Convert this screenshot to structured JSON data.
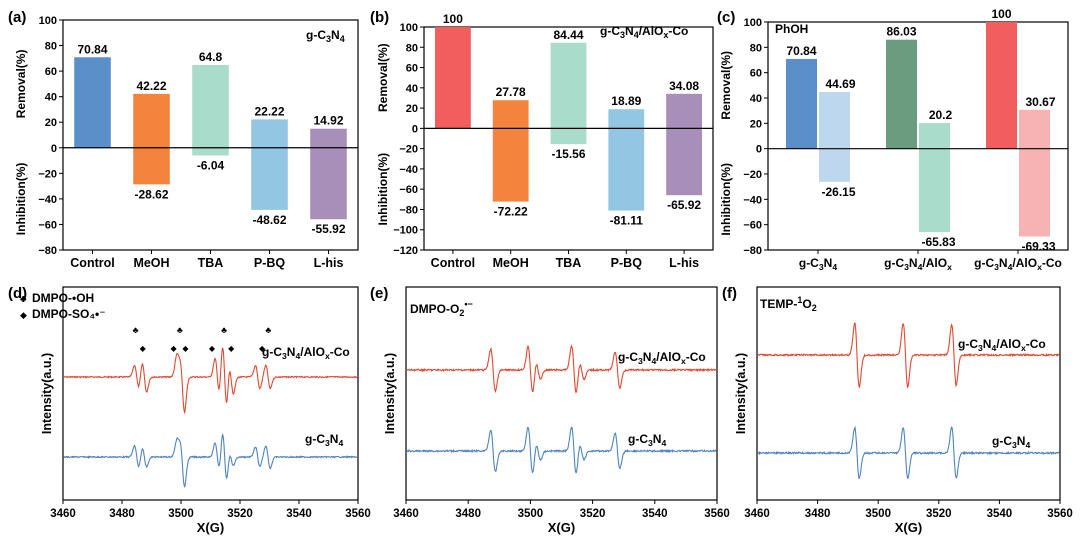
{
  "chart_data": [
    {
      "panel": "(a)",
      "type": "bar",
      "inset_text": {
        "base": "g-C",
        "sub1": "3",
        "mid": "N",
        "sub2": "4"
      },
      "categories": [
        "Control",
        "MeOH",
        "TBA",
        "P-BQ",
        "L-his"
      ],
      "removal": [
        70.84,
        42.22,
        64.8,
        22.22,
        14.92
      ],
      "inhibition": [
        null,
        -28.62,
        -6.04,
        -48.62,
        -55.92
      ],
      "removal_labels": [
        "70.84",
        "42.22",
        "64.8",
        "22.22",
        "14.92"
      ],
      "inhibition_labels": [
        "",
        "-28.62",
        "-6.04",
        "-48.62",
        "-55.92"
      ],
      "colors": [
        "#5b8fc9",
        "#f4843d",
        "#a9dccb",
        "#93c6e3",
        "#a88fba"
      ],
      "ylabel_top": "Removal(%)",
      "ylabel_bottom": "Inhibition(%)",
      "ylim": [
        -80,
        100
      ],
      "yticks": [
        "100",
        "80",
        "60",
        "40",
        "20",
        "0",
        "−20",
        "−40",
        "−60",
        "−80"
      ]
    },
    {
      "panel": "(b)",
      "type": "bar",
      "inset_text": {
        "base": "g-C",
        "sub1": "3",
        "mid": "N",
        "sub2": "4",
        "tail": "/AlO",
        "sub3": "x",
        "end": "-Co"
      },
      "categories": [
        "Control",
        "MeOH",
        "TBA",
        "P-BQ",
        "L-his"
      ],
      "removal": [
        100,
        27.78,
        84.44,
        18.89,
        34.08
      ],
      "inhibition": [
        null,
        -72.22,
        -15.56,
        -81.11,
        -65.92
      ],
      "removal_labels": [
        "100",
        "27.78",
        "84.44",
        "18.89",
        "34.08"
      ],
      "inhibition_labels": [
        "",
        "-72.22",
        "-15.56",
        "-81.11",
        "-65.92"
      ],
      "colors": [
        "#f25e5e",
        "#f4843d",
        "#a9dccb",
        "#93c6e3",
        "#a88fba"
      ],
      "ylabel_top": "Removal(%)",
      "ylabel_bottom": "Inhibition(%)",
      "ylim": [
        -120,
        100
      ],
      "yticks": [
        "100",
        "80",
        "60",
        "40",
        "20",
        "0",
        "−20",
        "−40",
        "−60",
        "−80",
        "−100",
        "−120"
      ]
    },
    {
      "panel": "(c)",
      "type": "bar",
      "inset_text": "PhOH",
      "groups": [
        "g-C3N4",
        "g-C3N4/AlOx",
        "g-C3N4/AlOx-Co"
      ],
      "removal_dark": [
        70.84,
        86.03,
        100
      ],
      "removal_light": [
        44.69,
        20.2,
        30.67
      ],
      "inhibition_light": [
        -26.15,
        -65.83,
        -69.33
      ],
      "removal_dark_labels": [
        "70.84",
        "86.03",
        "100"
      ],
      "removal_light_labels": [
        "44.69",
        "20.2",
        "30.67"
      ],
      "inhibition_labels": [
        "-26.15",
        "-65.83",
        "-69.33"
      ],
      "dark_colors": [
        "#5b8fc9",
        "#6a9d80",
        "#f25e5e"
      ],
      "light_colors": [
        "#bcd7ee",
        "#a9dccb",
        "#f7b3b3"
      ],
      "ylabel_top": "Removal(%)",
      "ylabel_bottom": "Inhibition(%)",
      "ylim": [
        -80,
        100
      ],
      "yticks": [
        "100",
        "80",
        "60",
        "40",
        "20",
        "0",
        "−20",
        "−40",
        "−60",
        "−80"
      ]
    },
    {
      "panel": "(d)",
      "type": "line",
      "xlabel": "X(G)",
      "ylabel": "Intensity(a.u.)",
      "xlim": [
        3460,
        3560
      ],
      "xticks": [
        "3460",
        "3480",
        "3500",
        "3520",
        "3540",
        "3560"
      ],
      "legend_items": [
        "DMPO-•OH",
        "DMPO-SO₄•⁻"
      ],
      "legend_symbols": [
        "♣",
        "◆"
      ],
      "club_positions": [
        3484.6,
        3499.6,
        3514.6,
        3529.6
      ],
      "diamond_positions": [
        3487,
        3497.5,
        3501.5,
        3510.5,
        3517,
        3527.5
      ],
      "series": [
        {
          "label": "g-C3N4/AlOx-Co",
          "color": "#e0492f",
          "peaks": [
            [
              3485,
              0.35
            ],
            [
              3487.6,
              0.45
            ],
            [
              3499.2,
              0.55
            ],
            [
              3500.5,
              1.0
            ],
            [
              3512.3,
              0.55
            ],
            [
              3514.8,
              1.0
            ],
            [
              3517,
              0.5
            ],
            [
              3526,
              0.35
            ],
            [
              3529.5,
              0.35
            ]
          ]
        },
        {
          "label": "g-C3N4",
          "color": "#4f83c2",
          "peaks": [
            [
              3485,
              0.4
            ],
            [
              3487.6,
              0.35
            ],
            [
              3499.2,
              0.5
            ],
            [
              3500.5,
              1.0
            ],
            [
              3512.3,
              0.5
            ],
            [
              3514.8,
              0.9
            ],
            [
              3517,
              0.3
            ],
            [
              3526,
              0.35
            ],
            [
              3529.5,
              0.4
            ]
          ]
        }
      ]
    },
    {
      "panel": "(e)",
      "type": "line",
      "inset_text": {
        "base": "DMPO-O",
        "sub": "2",
        "sup": "•−"
      },
      "xlabel": "X(G)",
      "ylabel": "Intensity(a.u.)",
      "xlim": [
        3460,
        3560
      ],
      "xticks": [
        "3460",
        "3480",
        "3500",
        "3520",
        "3540",
        "3560"
      ],
      "series": [
        {
          "label": "g-C3N4/AlOx-Co",
          "color": "#e0492f",
          "peaks": [
            [
              3488,
              0.7
            ],
            [
              3500,
              0.8
            ],
            [
              3502.5,
              0.3
            ],
            [
              3514,
              0.8
            ],
            [
              3516.5,
              0.3
            ],
            [
              3528,
              0.6
            ]
          ]
        },
        {
          "label": "g-C3N4",
          "color": "#4f83c2",
          "peaks": [
            [
              3488,
              0.7
            ],
            [
              3500,
              0.8
            ],
            [
              3502.5,
              0.3
            ],
            [
              3514,
              0.8
            ],
            [
              3516.5,
              0.3
            ],
            [
              3528,
              0.6
            ]
          ]
        }
      ]
    },
    {
      "panel": "(f)",
      "type": "line",
      "inset_text": {
        "base": "TEMP-",
        "sup": "1",
        "end": "O",
        "sub": "2"
      },
      "xlabel": "X(G)",
      "ylabel": "Intensity(a.u.)",
      "xlim": [
        3460,
        3560
      ],
      "xticks": [
        "3460",
        "3480",
        "3500",
        "3520",
        "3540",
        "3560"
      ],
      "series": [
        {
          "label": "g-C3N4/AlOx-Co",
          "color": "#e0492f",
          "peaks": [
            [
              3493,
              1.0
            ],
            [
              3509,
              1.0
            ],
            [
              3525,
              0.95
            ]
          ]
        },
        {
          "label": "g-C3N4",
          "color": "#4f83c2",
          "peaks": [
            [
              3493,
              0.85
            ],
            [
              3509,
              0.85
            ],
            [
              3525,
              0.85
            ]
          ]
        }
      ]
    }
  ]
}
